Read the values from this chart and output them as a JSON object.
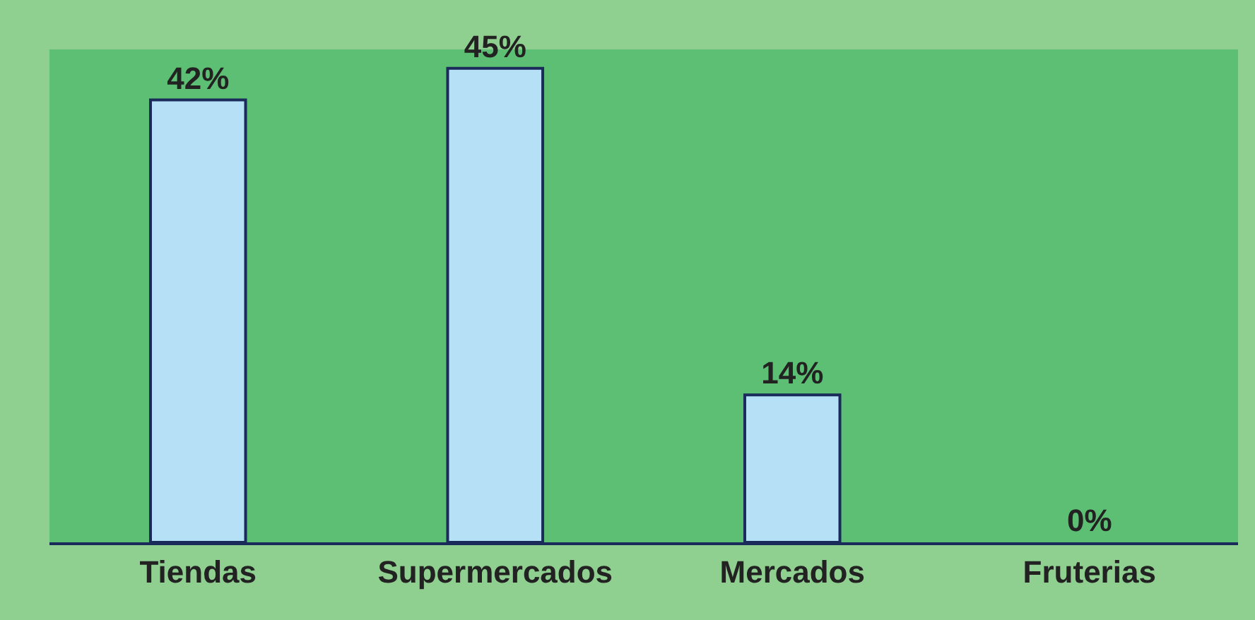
{
  "chart_data": {
    "type": "bar",
    "categories": [
      "Tiendas",
      "Supermercados",
      "Mercados",
      "Fruterias"
    ],
    "values": [
      42,
      45,
      14,
      0
    ],
    "value_labels": [
      "42%",
      "45%",
      "14%",
      "0%"
    ],
    "color": "#b5e0f5",
    "grid": false
  }
}
